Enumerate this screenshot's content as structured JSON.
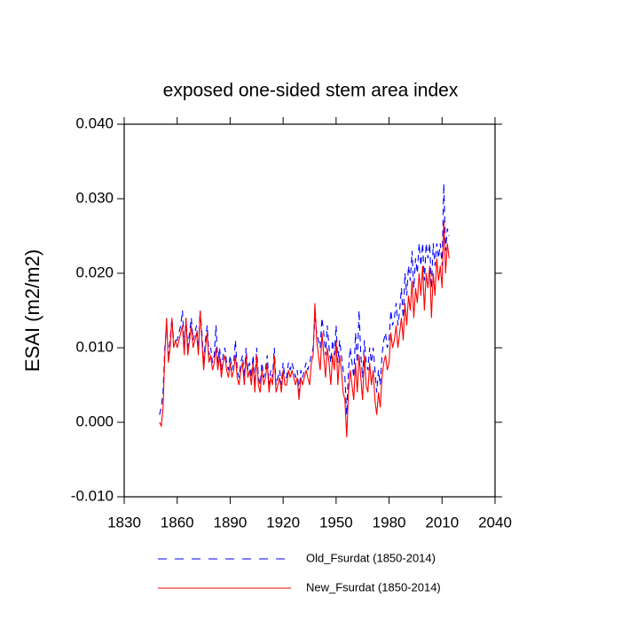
{
  "chart_data": {
    "type": "line",
    "title": "exposed one-sided stem area index",
    "y_label": "ESAI  (m2/m2)",
    "x": [
      1850,
      1851,
      1852,
      1853,
      1854,
      1855,
      1856,
      1857,
      1858,
      1859,
      1860,
      1861,
      1862,
      1863,
      1864,
      1865,
      1866,
      1867,
      1868,
      1869,
      1870,
      1871,
      1872,
      1873,
      1874,
      1875,
      1876,
      1877,
      1878,
      1879,
      1880,
      1881,
      1882,
      1883,
      1884,
      1885,
      1886,
      1887,
      1888,
      1889,
      1890,
      1891,
      1892,
      1893,
      1894,
      1895,
      1896,
      1897,
      1898,
      1899,
      1900,
      1901,
      1902,
      1903,
      1904,
      1905,
      1906,
      1907,
      1908,
      1909,
      1910,
      1911,
      1912,
      1913,
      1914,
      1915,
      1916,
      1917,
      1918,
      1919,
      1920,
      1921,
      1922,
      1923,
      1924,
      1925,
      1926,
      1927,
      1928,
      1929,
      1930,
      1931,
      1932,
      1933,
      1934,
      1935,
      1936,
      1937,
      1938,
      1939,
      1940,
      1941,
      1942,
      1943,
      1944,
      1945,
      1946,
      1947,
      1948,
      1949,
      1950,
      1951,
      1952,
      1953,
      1954,
      1955,
      1956,
      1957,
      1958,
      1959,
      1960,
      1961,
      1962,
      1963,
      1964,
      1965,
      1966,
      1967,
      1968,
      1969,
      1970,
      1971,
      1972,
      1973,
      1974,
      1975,
      1976,
      1977,
      1978,
      1979,
      1980,
      1981,
      1982,
      1983,
      1984,
      1985,
      1986,
      1987,
      1988,
      1989,
      1990,
      1991,
      1992,
      1993,
      1994,
      1995,
      1996,
      1997,
      1998,
      1999,
      2000,
      2001,
      2002,
      2003,
      2004,
      2005,
      2006,
      2007,
      2008,
      2009,
      2010,
      2011,
      2012,
      2013,
      2014
    ],
    "series": [
      {
        "name": "Old_Fsurdat (1850-2014)",
        "color": "#0000ff",
        "line_style": "dashed",
        "values": [
          0.001,
          0.002,
          0.004,
          0.01,
          0.013,
          0.009,
          0.011,
          0.014,
          0.011,
          0.011,
          0.011,
          0.012,
          0.013,
          0.015,
          0.01,
          0.014,
          0.01,
          0.012,
          0.014,
          0.011,
          0.012,
          0.013,
          0.01,
          0.015,
          0.012,
          0.008,
          0.011,
          0.013,
          0.009,
          0.01,
          0.008,
          0.009,
          0.013,
          0.008,
          0.01,
          0.007,
          0.009,
          0.01,
          0.008,
          0.007,
          0.009,
          0.007,
          0.008,
          0.011,
          0.007,
          0.006,
          0.008,
          0.009,
          0.006,
          0.01,
          0.007,
          0.008,
          0.006,
          0.009,
          0.005,
          0.01,
          0.006,
          0.005,
          0.008,
          0.006,
          0.007,
          0.009,
          0.005,
          0.007,
          0.006,
          0.01,
          0.005,
          0.006,
          0.007,
          0.005,
          0.008,
          0.006,
          0.006,
          0.008,
          0.007,
          0.008,
          0.007,
          0.006,
          0.007,
          0.004,
          0.007,
          0.006,
          0.007,
          0.008,
          0.007,
          0.008,
          0.009,
          0.01,
          0.014,
          0.012,
          0.011,
          0.01,
          0.014,
          0.012,
          0.009,
          0.013,
          0.01,
          0.008,
          0.011,
          0.009,
          0.013,
          0.008,
          0.011,
          0.009,
          0.007,
          0.006,
          0.001,
          0.007,
          0.01,
          0.008,
          0.006,
          0.012,
          0.008,
          0.015,
          0.009,
          0.006,
          0.011,
          0.008,
          0.007,
          0.01,
          0.008,
          0.01,
          0.007,
          0.004,
          0.007,
          0.005,
          0.009,
          0.011,
          0.012,
          0.01,
          0.011,
          0.015,
          0.013,
          0.014,
          0.016,
          0.013,
          0.015,
          0.018,
          0.014,
          0.02,
          0.017,
          0.021,
          0.019,
          0.023,
          0.018,
          0.022,
          0.02,
          0.024,
          0.021,
          0.024,
          0.019,
          0.024,
          0.022,
          0.024,
          0.018,
          0.024,
          0.021,
          0.024,
          0.022,
          0.024,
          0.021,
          0.032,
          0.023,
          0.026,
          0.025
        ]
      },
      {
        "name": "New_Fsurdat (1850-2014)",
        "color": "#ff0000",
        "line_style": "solid",
        "values": [
          0.0,
          -0.0005,
          0.002,
          0.009,
          0.014,
          0.008,
          0.01,
          0.014,
          0.01,
          0.011,
          0.01,
          0.011,
          0.012,
          0.013,
          0.009,
          0.014,
          0.009,
          0.011,
          0.013,
          0.01,
          0.011,
          0.012,
          0.009,
          0.015,
          0.011,
          0.007,
          0.01,
          0.012,
          0.008,
          0.009,
          0.007,
          0.008,
          0.01,
          0.007,
          0.009,
          0.006,
          0.008,
          0.009,
          0.007,
          0.006,
          0.008,
          0.006,
          0.007,
          0.009,
          0.006,
          0.005,
          0.007,
          0.008,
          0.005,
          0.009,
          0.006,
          0.007,
          0.005,
          0.008,
          0.004,
          0.009,
          0.005,
          0.004,
          0.007,
          0.005,
          0.006,
          0.008,
          0.004,
          0.006,
          0.005,
          0.009,
          0.004,
          0.005,
          0.006,
          0.004,
          0.007,
          0.005,
          0.005,
          0.007,
          0.006,
          0.007,
          0.006,
          0.005,
          0.006,
          0.003,
          0.006,
          0.005,
          0.006,
          0.007,
          0.006,
          0.005,
          0.008,
          0.009,
          0.016,
          0.011,
          0.009,
          0.007,
          0.012,
          0.009,
          0.006,
          0.01,
          0.008,
          0.005,
          0.009,
          0.007,
          0.011,
          0.005,
          0.009,
          0.007,
          0.004,
          0.003,
          -0.002,
          0.004,
          0.007,
          0.005,
          0.003,
          0.008,
          0.004,
          0.009,
          0.006,
          0.003,
          0.009,
          0.005,
          0.004,
          0.008,
          0.005,
          0.007,
          0.003,
          0.001,
          0.004,
          0.002,
          0.006,
          0.008,
          0.009,
          0.007,
          0.008,
          0.012,
          0.01,
          0.011,
          0.013,
          0.01,
          0.012,
          0.014,
          0.011,
          0.016,
          0.013,
          0.017,
          0.015,
          0.019,
          0.014,
          0.018,
          0.016,
          0.02,
          0.017,
          0.021,
          0.015,
          0.02,
          0.018,
          0.021,
          0.014,
          0.02,
          0.017,
          0.022,
          0.019,
          0.021,
          0.018,
          0.027,
          0.02,
          0.024,
          0.022
        ]
      }
    ],
    "xlim": [
      1830,
      2040
    ],
    "xticks": [
      1830,
      1860,
      1890,
      1920,
      1950,
      1980,
      2010,
      2040
    ],
    "ylim": [
      -0.01,
      0.04
    ],
    "yticks": [
      {
        "value": -0.01,
        "label": "-0.010"
      },
      {
        "value": 0,
        "label": "0.000"
      },
      {
        "value": 0.01,
        "label": "0.010"
      },
      {
        "value": 0.02,
        "label": "0.020"
      },
      {
        "value": 0.03,
        "label": "0.030"
      },
      {
        "value": 0.04,
        "label": "0.040"
      }
    ],
    "grid": false,
    "legend": "bottom"
  }
}
